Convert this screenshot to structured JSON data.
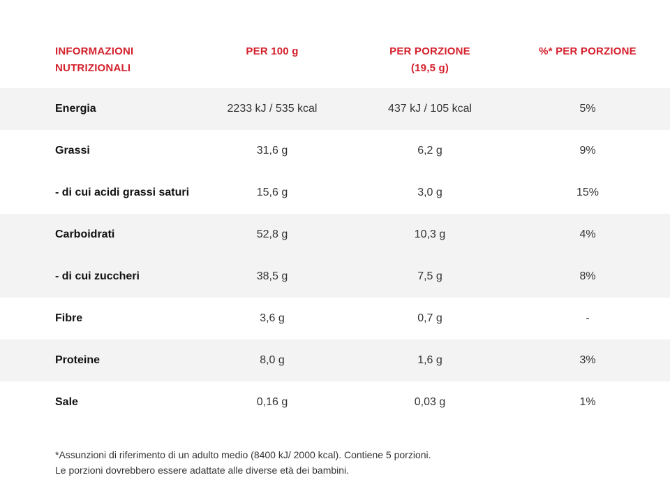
{
  "table": {
    "headers": [
      [
        "INFORMAZIONI",
        "NUTRIZIONALI"
      ],
      [
        "PER 100 g"
      ],
      [
        "PER PORZIONE",
        "(19,5 g)"
      ],
      [
        "%* PER PORZIONE"
      ]
    ],
    "rows": [
      {
        "label": "Energia",
        "per100": "2233 kJ / 535 kcal",
        "perPortion": "437 kJ / 105 kcal",
        "pct": "5%",
        "shaded": true
      },
      {
        "label": "Grassi",
        "per100": "31,6 g",
        "perPortion": "6,2 g",
        "pct": "9%",
        "shaded": false
      },
      {
        "label": "- di cui acidi grassi saturi",
        "per100": "15,6 g",
        "perPortion": "3,0 g",
        "pct": "15%",
        "shaded": false
      },
      {
        "label": "Carboidrati",
        "per100": "52,8 g",
        "perPortion": "10,3 g",
        "pct": "4%",
        "shaded": true
      },
      {
        "label": "- di cui zuccheri",
        "per100": "38,5 g",
        "perPortion": "7,5 g",
        "pct": "8%",
        "shaded": true
      },
      {
        "label": "Fibre",
        "per100": "3,6 g",
        "perPortion": "0,7 g",
        "pct": "-",
        "shaded": false
      },
      {
        "label": "Proteine",
        "per100": "8,0 g",
        "perPortion": "1,6 g",
        "pct": "3%",
        "shaded": true
      },
      {
        "label": "Sale",
        "per100": "0,16 g",
        "perPortion": "0,03 g",
        "pct": "1%",
        "shaded": false
      }
    ]
  },
  "footnote": {
    "line1": "*Assunzioni di riferimento di un adulto medio (8400 kJ/ 2000 kcal). Contiene 5 porzioni.",
    "line2": "Le porzioni dovrebbero essere adattate alle diverse età dei bambini."
  },
  "colors": {
    "header_red": "#d4202c",
    "shaded_row": "#f3f3f3"
  }
}
